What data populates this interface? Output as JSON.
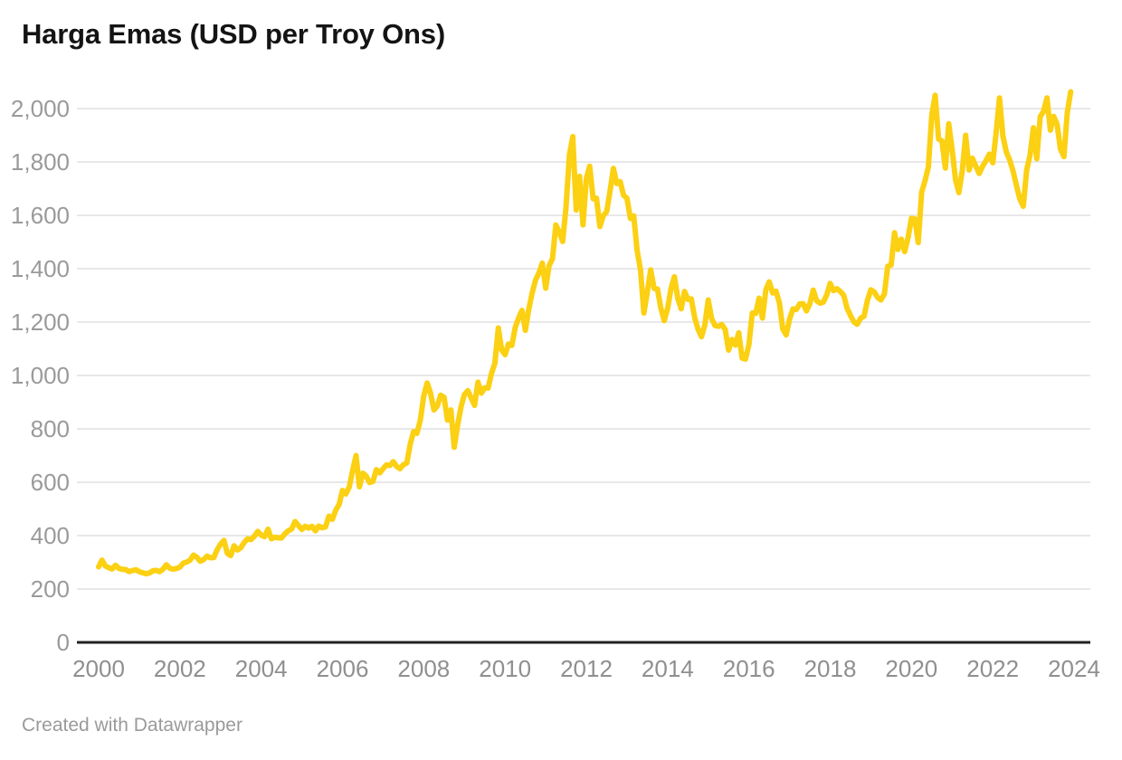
{
  "title": "Harga Emas (USD per Troy Ons)",
  "footer": {
    "text": "Created with Datawrapper"
  },
  "chart_data": {
    "type": "line",
    "title": "Harga Emas (USD per Troy Ons)",
    "series": [
      {
        "name": "Harga emas (USD per troy ons)",
        "frequency": "monthly",
        "start": "2000-01",
        "end": "2023-12",
        "values": [
          283,
          308,
          286,
          280,
          275,
          289,
          277,
          274,
          273,
          265,
          269,
          272,
          265,
          261,
          257,
          260,
          268,
          270,
          265,
          274,
          291,
          278,
          274,
          277,
          282,
          297,
          301,
          308,
          327,
          319,
          304,
          310,
          323,
          317,
          318,
          347,
          368,
          382,
          334,
          325,
          362,
          346,
          355,
          375,
          388,
          385,
          398,
          416,
          402,
          396,
          424,
          388,
          394,
          392,
          391,
          407,
          418,
          425,
          453,
          438,
          423,
          435,
          428,
          435,
          418,
          436,
          429,
          433,
          473,
          461,
          495,
          517,
          569,
          556,
          582,
          644,
          700,
          583,
          634,
          623,
          599,
          603,
          647,
          635,
          651,
          665,
          663,
          677,
          659,
          651,
          666,
          672,
          743,
          790,
          783,
          834,
          923,
          972,
          934,
          871,
          886,
          926,
          918,
          833,
          871,
          731,
          815,
          882,
          928,
          943,
          916,
          888,
          975,
          934,
          954,
          953,
          1008,
          1045,
          1178,
          1096,
          1078,
          1118,
          1113,
          1180,
          1215,
          1244,
          1169,
          1248,
          1309,
          1358,
          1384,
          1421,
          1327,
          1411,
          1438,
          1564,
          1537,
          1502,
          1628,
          1826,
          1895,
          1620,
          1746,
          1564,
          1738,
          1784,
          1662,
          1664,
          1558,
          1598,
          1614,
          1691,
          1776,
          1719,
          1726,
          1675,
          1664,
          1588,
          1598,
          1469,
          1394,
          1234,
          1313,
          1396,
          1326,
          1324,
          1253,
          1205,
          1251,
          1326,
          1370,
          1288,
          1250,
          1315,
          1285,
          1287,
          1216,
          1173,
          1145,
          1190,
          1283,
          1213,
          1187,
          1184,
          1191,
          1172,
          1095,
          1135,
          1114,
          1160,
          1065,
          1061,
          1116,
          1234,
          1233,
          1290,
          1215,
          1321,
          1351,
          1309,
          1316,
          1272,
          1174,
          1152,
          1211,
          1249,
          1247,
          1268,
          1269,
          1242,
          1269,
          1320,
          1280,
          1271,
          1275,
          1303,
          1345,
          1318,
          1325,
          1315,
          1300,
          1252,
          1224,
          1201,
          1192,
          1215,
          1222,
          1282,
          1321,
          1313,
          1292,
          1283,
          1305,
          1409,
          1414,
          1535,
          1472,
          1511,
          1464,
          1517,
          1589,
          1586,
          1498,
          1687,
          1730,
          1781,
          1976,
          2050,
          1886,
          1879,
          1777,
          1943,
          1848,
          1734,
          1685,
          1768,
          1900,
          1770,
          1814,
          1785,
          1757,
          1783,
          1805,
          1829,
          1797,
          1909,
          2040,
          1897,
          1838,
          1807,
          1766,
          1711,
          1661,
          1634,
          1769,
          1824,
          1928,
          1812,
          1969,
          1990,
          2040,
          1919,
          1971,
          1940,
          1848,
          1820,
          1984,
          2063
        ]
      }
    ],
    "x_tick_labels": [
      "2000",
      "2002",
      "2004",
      "2006",
      "2008",
      "2010",
      "2012",
      "2014",
      "2016",
      "2018",
      "2020",
      "2022",
      "2024"
    ],
    "y_tick_labels": [
      "0",
      "200",
      "400",
      "600",
      "800",
      "1,000",
      "1,200",
      "1,400",
      "1,600",
      "1,800",
      "2,000"
    ],
    "y_tick_values": [
      0,
      200,
      400,
      600,
      800,
      1000,
      1200,
      1400,
      1600,
      1800,
      2000
    ],
    "xlim": [
      2000,
      2024.3
    ],
    "ylim": [
      0,
      2090
    ],
    "grid": "horizontal",
    "legend": "none",
    "line_color": "#FCD013",
    "grid_color": "#e8e8e8",
    "axis_color": "#222222",
    "tick_label_color": "#9a9a9a"
  }
}
